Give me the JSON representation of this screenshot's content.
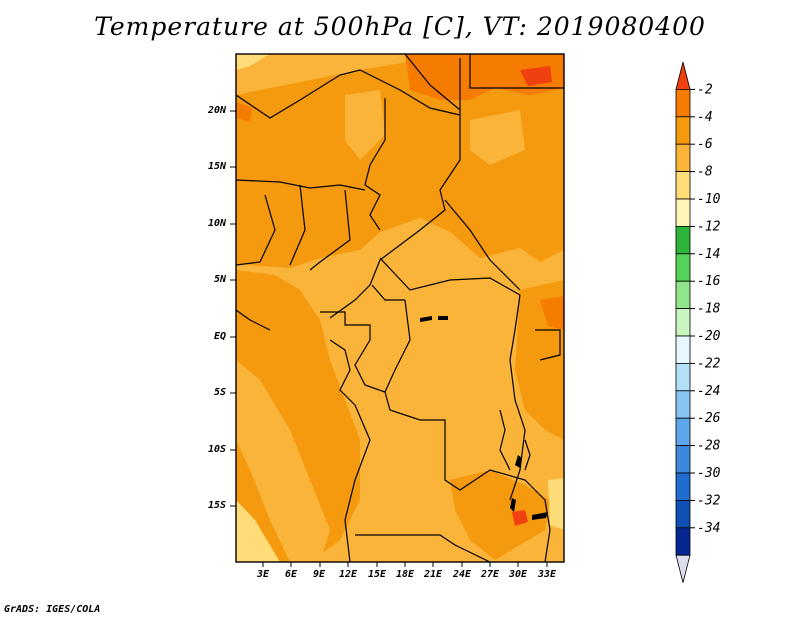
{
  "title": "Temperature at 500hPa [C], VT: 2019080400",
  "credit": "GrADS: IGES/COLA",
  "map": {
    "lat_labels": [
      "20N",
      "15N",
      "10N",
      "5N",
      "EQ",
      "5S",
      "10S",
      "15S"
    ],
    "lon_labels": [
      "3E",
      "6E",
      "9E",
      "12E",
      "15E",
      "18E",
      "21E",
      "24E",
      "27E",
      "30E",
      "33E"
    ]
  },
  "colorbar": {
    "labels": [
      "-2",
      "-4",
      "-6",
      "-8",
      "-10",
      "-12",
      "-14",
      "-16",
      "-18",
      "-20",
      "-22",
      "-24",
      "-26",
      "-28",
      "-30",
      "-32",
      "-34"
    ],
    "colors": [
      "#f04010",
      "#f57c00",
      "#f59a0f",
      "#fbb43a",
      "#fedc78",
      "#fff5b9",
      "#2db53a",
      "#56d15b",
      "#8fe68a",
      "#c8f5c0",
      "#e6f8ff",
      "#b4e1f8",
      "#87c4f1",
      "#5ea6ea",
      "#3d88dd",
      "#206ccf",
      "#1050b4",
      "#052690",
      "#ddddf0"
    ]
  }
}
